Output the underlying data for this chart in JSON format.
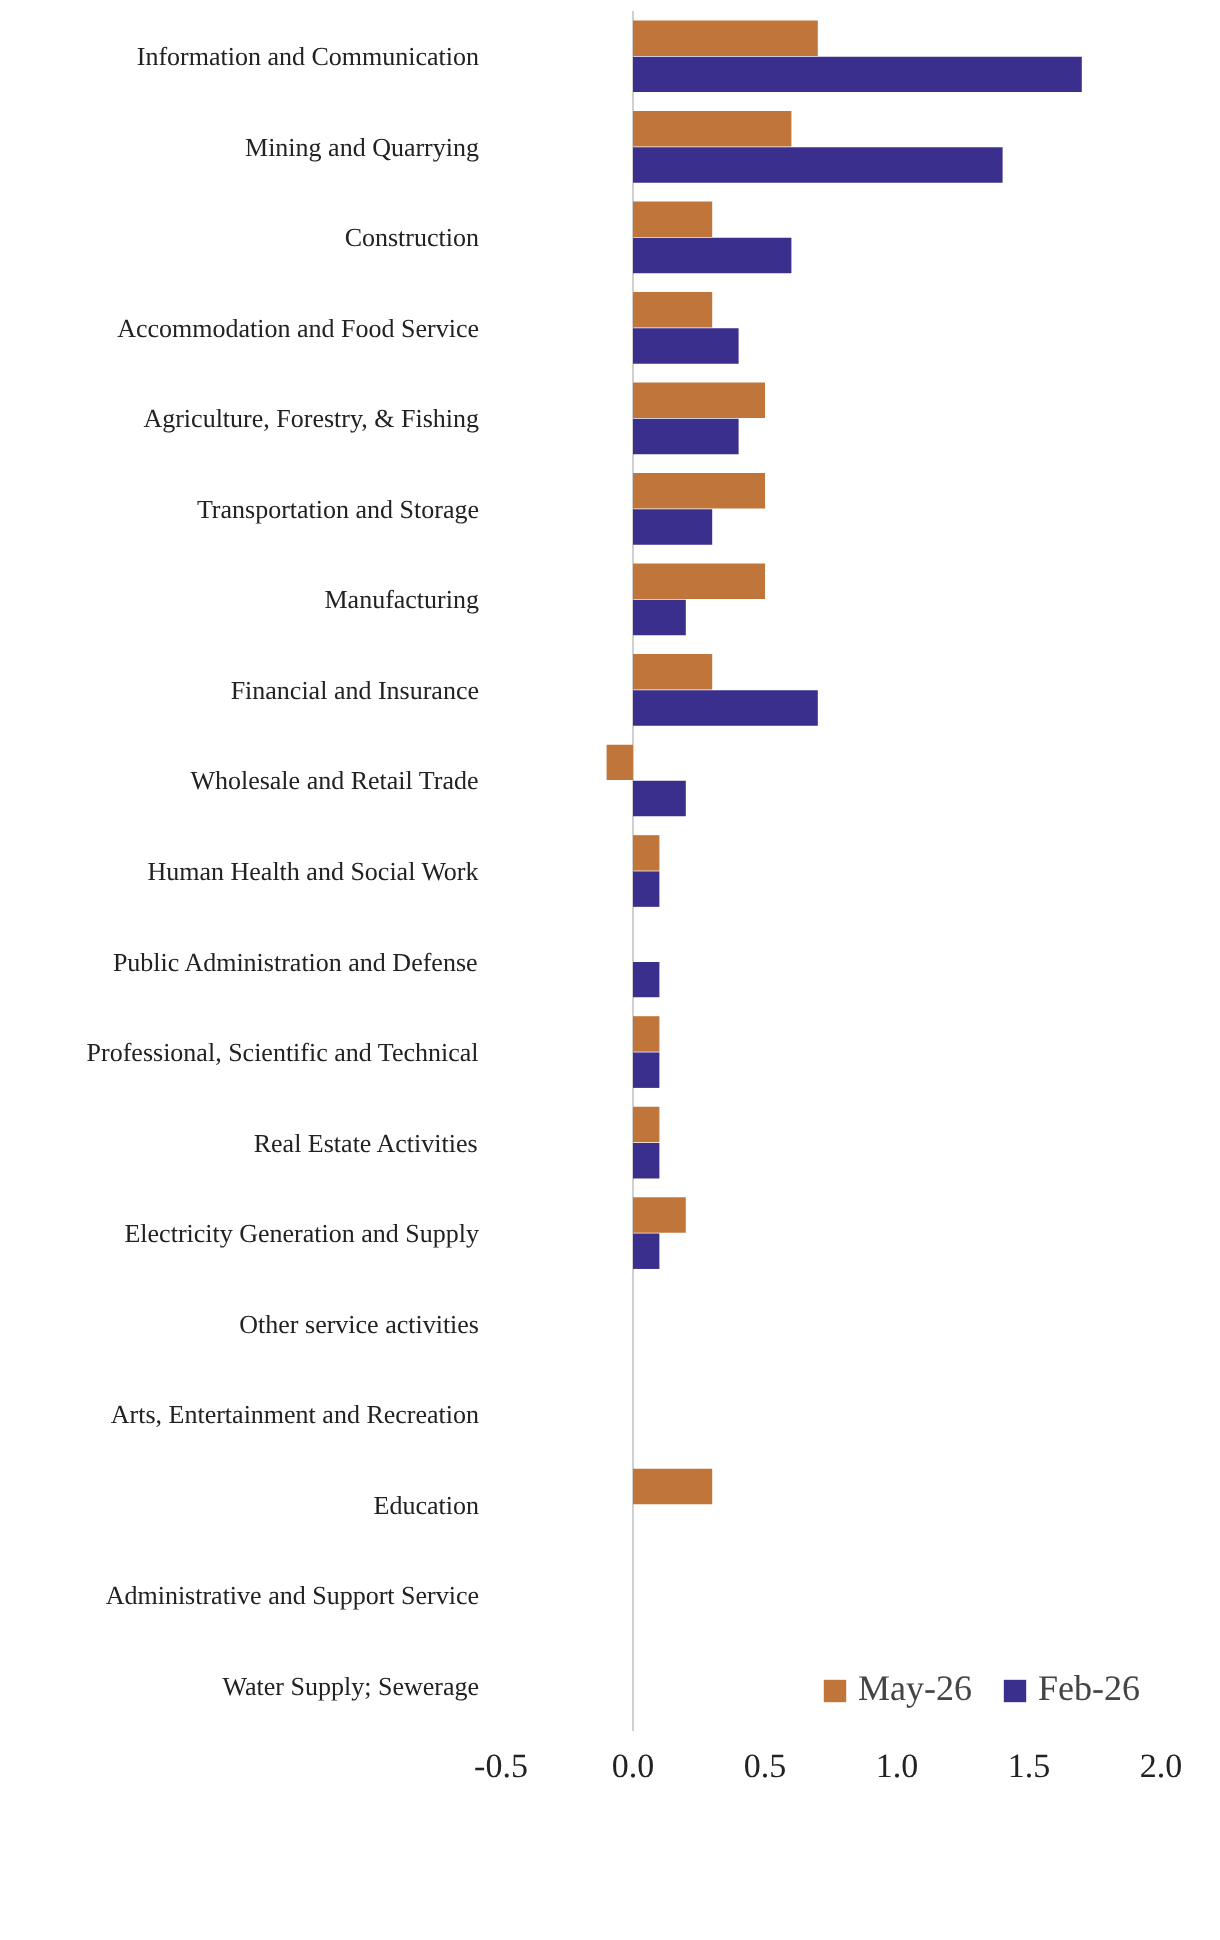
{
  "chart_data": {
    "type": "bar",
    "orientation": "horizontal",
    "categories": [
      "Information and Communication",
      "Mining and Quarrying",
      "Construction",
      "Accommodation and Food Service",
      "Agriculture, Forestry, & Fishing",
      "Transportation and Storage",
      "Manufacturing",
      "Financial and Insurance",
      "Wholesale and Retail Trade",
      "Human Health and Social Work",
      "Public Administration and Defense",
      "Professional, Scientific and Technical",
      "Real Estate Activities",
      "Electricity Generation and Supply",
      "Other service activities",
      "Arts, Entertainment and Recreation",
      "Education",
      "Administrative and Support Service",
      "Water Supply; Sewerage"
    ],
    "series": [
      {
        "name": "May-26",
        "color": "#c0763a",
        "values": [
          0.7,
          0.6,
          0.3,
          0.3,
          0.5,
          0.5,
          0.5,
          0.3,
          -0.1,
          0.1,
          0,
          0.1,
          0.1,
          0.2,
          0,
          0,
          0.3,
          0,
          0
        ]
      },
      {
        "name": "Feb-26",
        "color": "#3a2f8c",
        "values": [
          1.7,
          1.4,
          0.6,
          0.4,
          0.4,
          0.3,
          0.2,
          0.7,
          0.2,
          0.1,
          0.1,
          0.1,
          0.1,
          0.1,
          0,
          0,
          0,
          0,
          0
        ]
      }
    ],
    "xlim": [
      -0.5,
      2.0
    ],
    "xticks": [
      -0.5,
      {
        "value": 0,
        "label": "0.0"
      },
      0.5,
      {
        "value": 1,
        "label": "1.0"
      },
      1.5,
      {
        "value": 2,
        "label": "2.0"
      }
    ],
    "ref_lines": [
      {
        "axis": "x",
        "value": 0,
        "color": "#d0d0d0"
      }
    ],
    "grid": false,
    "legend": "bottom"
  }
}
